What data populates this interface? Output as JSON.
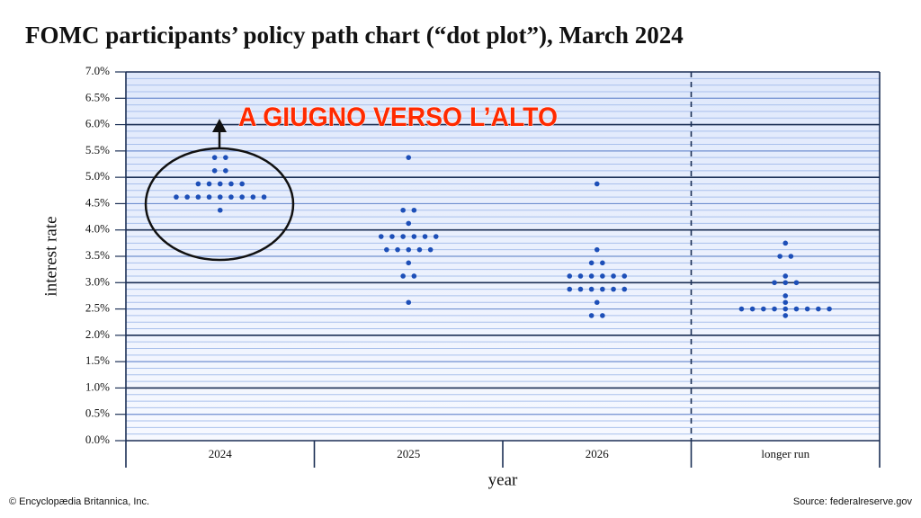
{
  "chart_data": {
    "type": "dot",
    "title": "FOMC participants’ policy path chart (“dot plot”), March 2024",
    "y_label": "interest rate",
    "x_label": "year",
    "annotation": "A GIUGNO VERSO L’ALTO",
    "credit": "© Encyclopædia Britannica, Inc.",
    "source": "Source: federalreserve.gov",
    "categories": [
      "2024",
      "2025",
      "2026",
      "longer run"
    ],
    "values": [
      [
        5.375,
        5.375,
        5.125,
        5.125,
        4.875,
        4.875,
        4.875,
        4.875,
        4.875,
        4.625,
        4.625,
        4.625,
        4.625,
        4.625,
        4.625,
        4.625,
        4.625,
        4.625,
        4.375
      ],
      [
        5.375,
        4.375,
        4.375,
        4.125,
        3.875,
        3.875,
        3.875,
        3.875,
        3.875,
        3.875,
        3.625,
        3.625,
        3.625,
        3.625,
        3.625,
        3.375,
        3.125,
        3.125,
        2.625
      ],
      [
        4.875,
        3.625,
        3.375,
        3.375,
        3.125,
        3.125,
        3.125,
        3.125,
        3.125,
        3.125,
        2.875,
        2.875,
        2.875,
        2.875,
        2.875,
        2.875,
        2.625,
        2.375,
        2.375
      ],
      [
        3.75,
        3.5,
        3.5,
        3.125,
        3.0,
        3.0,
        3.0,
        2.75,
        2.625,
        2.5,
        2.5,
        2.5,
        2.5,
        2.5,
        2.5,
        2.5,
        2.5,
        2.5,
        2.375
      ]
    ],
    "color": "#1d4fb8",
    "ylim": [
      0,
      7
    ],
    "yticks": [
      {
        "value": 0,
        "label": "0.0%"
      },
      {
        "value": 0.5,
        "label": "0.5%"
      },
      {
        "value": 1,
        "label": "1.0%"
      },
      {
        "value": 1.5,
        "label": "1.5%"
      },
      {
        "value": 2,
        "label": "2.0%"
      },
      {
        "value": 2.5,
        "label": "2.5%"
      },
      {
        "value": 3,
        "label": "3.0%"
      },
      {
        "value": 3.5,
        "label": "3.5%"
      },
      {
        "value": 4,
        "label": "4.0%"
      },
      {
        "value": 4.5,
        "label": "4.5%"
      },
      {
        "value": 5,
        "label": "5.0%"
      },
      {
        "value": 5.5,
        "label": "5.5%"
      },
      {
        "value": 6,
        "label": "6.0%"
      },
      {
        "value": 6.5,
        "label": "6.5%"
      },
      {
        "value": 7,
        "label": "7.0%"
      }
    ],
    "grid": true
  }
}
